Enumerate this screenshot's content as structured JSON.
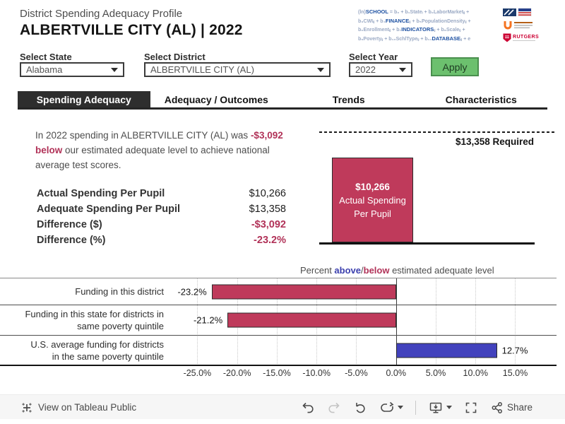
{
  "header": {
    "subtitle": "District Spending Adequacy Profile",
    "title": "ALBERTVILLE CITY (AL) | 2022",
    "formula": {
      "line1": {
        "pre": "(ln)",
        "kw": "SCHOOL",
        "post": " = b₀ + b₁Stateᵢ + b₂LaborMarketᵢⱼ +"
      },
      "line2": {
        "pre": "b₃CWIᵢⱼ + b₄",
        "kw": "FINANCE",
        "post": "ᵢⱼ + b₅PopulationDensityᵢⱼ +"
      },
      "line3": {
        "pre": "b₆Enrollmentᵢⱼ + b₇",
        "kw": "INDICATORS",
        "post": "ᵢⱼ + b₈Scaleᵢⱼ +"
      },
      "line4": {
        "pre": "b₉Povertyᵢⱼ + b₁₀SchlTypeᵢⱼ + b₁₁",
        "kw": "DATABASE",
        "post": "ᵢⱼ + e"
      }
    },
    "rutgers_text": "RUTGERS"
  },
  "filters": {
    "state": {
      "label": "Select State",
      "value": "Alabama"
    },
    "district": {
      "label": "Select District",
      "value": "ALBERTVILLE CITY (AL)"
    },
    "year": {
      "label": "Select Year",
      "value": "2022"
    },
    "apply_label": "Apply"
  },
  "tabs": [
    {
      "label": "Spending Adequacy",
      "active": true
    },
    {
      "label": "Adequacy / Outcomes",
      "active": false
    },
    {
      "label": "Trends",
      "active": false
    },
    {
      "label": "Characteristics",
      "active": false
    }
  ],
  "summary": {
    "text_before": "In 2022 spending in ALBERTVILLE CITY (AL) was ",
    "highlight": "-$3,092 below",
    "text_after": " our estimated adequate level to achieve national average test scores.",
    "rows": [
      {
        "label": "Actual Spending Per Pupil",
        "value": "$10,266",
        "negative": false
      },
      {
        "label": "Adequate Spending Per Pupil",
        "value": "$13,358",
        "negative": false
      },
      {
        "label": "Difference ($)",
        "value": "-$3,092",
        "negative": true
      },
      {
        "label": "Difference (%)",
        "value": "-23.2%",
        "negative": true
      }
    ]
  },
  "colors": {
    "negative_accent": "#bf3a5b",
    "positive_accent": "#4242bd",
    "apply_green": "#6cc06e",
    "tab_active_bg": "#2e2e2e"
  },
  "chart_data": [
    {
      "type": "bar",
      "categories": [
        "Actual Spending Per Pupil"
      ],
      "values": [
        10266
      ],
      "ylim": [
        0,
        13358
      ],
      "reference_value": 13358,
      "reference_label": "$13,358 Required",
      "bar_value_label": "$10,266",
      "bar_name_line1": "Actual Spending",
      "bar_name_line2": "Per Pupil",
      "bar_color": "#bf3a5b"
    },
    {
      "type": "bar",
      "orientation": "horizontal",
      "title": "Percent above/below estimated adequate level",
      "title_parts": {
        "pre": "Percent ",
        "above": "above",
        "slash": "/",
        "below": "below",
        "post": " estimated adequate level"
      },
      "categories": [
        "Funding in this district",
        "Funding in this state for districts in same poverty quintile",
        "U.S. average funding for districts in the same poverty quintile"
      ],
      "category_display": [
        "Funding in this district",
        "Funding in this state for districts in\nsame poverty quintile",
        "U.S. average funding for districts\nin the same poverty quintile"
      ],
      "values": [
        -23.2,
        -21.2,
        12.7
      ],
      "value_labels": [
        "-23.2%",
        "-21.2%",
        "12.7%"
      ],
      "xlim": [
        -28.5,
        20.2
      ],
      "ticks": [
        -25,
        -20,
        -15,
        -10,
        -5,
        0,
        5,
        10,
        15
      ],
      "tick_labels": [
        "-25.0%",
        "-20.0%",
        "-15.0%",
        "-10.0%",
        "-5.0%",
        "0.0%",
        "5.0%",
        "10.0%",
        "15.0%"
      ],
      "grid": true,
      "colors": {
        "negative": "#bf3a5b",
        "positive": "#4242bd"
      }
    }
  ],
  "toolbar": {
    "view_on_label": "View on Tableau Public",
    "share_label": "Share"
  }
}
